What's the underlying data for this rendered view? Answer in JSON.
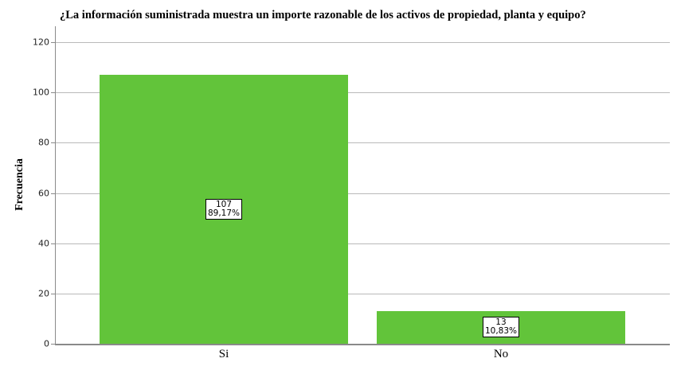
{
  "chart_data": {
    "type": "bar",
    "title": "¿La información suministrada muestra un importe razonable de los activos de propiedad, planta y equipo?",
    "xlabel": "",
    "ylabel": "Frecuencia",
    "categories": [
      "Si",
      "No"
    ],
    "values": [
      107,
      13
    ],
    "percent_labels": [
      "89,17%",
      "10,83%"
    ],
    "count_labels": [
      "107",
      "13"
    ],
    "ylim": [
      0,
      126
    ],
    "yticks": [
      0,
      20,
      40,
      60,
      80,
      100,
      120
    ],
    "grid": true,
    "legend": null,
    "bar_color": "#62c43a"
  }
}
